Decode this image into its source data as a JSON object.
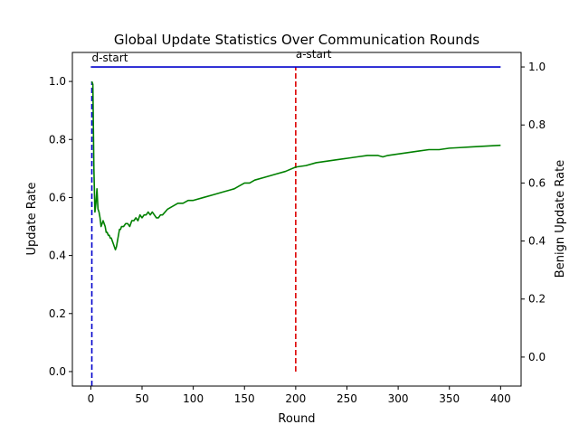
{
  "chart_data": {
    "type": "line",
    "title": "Global Update Statistics Over Communication Rounds",
    "xlabel": "Round",
    "ylabel_left": "Update Rate",
    "ylabel_right": "Benign Update Rate",
    "xlim": [
      -18,
      420
    ],
    "ylim_left": [
      -0.05,
      1.1
    ],
    "ylim_right": [
      -0.1,
      1.05
    ],
    "x_ticks": [
      0,
      50,
      100,
      150,
      200,
      250,
      300,
      350,
      400
    ],
    "y_ticks_left": [
      0.0,
      0.2,
      0.4,
      0.6,
      0.8,
      1.0
    ],
    "y_ticks_right": [
      0.0,
      0.2,
      0.4,
      0.6,
      0.8,
      1.0
    ],
    "colors": {
      "update_rate": "#008000",
      "benign_update_rate": "#0000cc",
      "d_start_line": "#0000cc",
      "a_start_line": "#dd0000",
      "left_axis_label": "#008000",
      "right_axis_label": "#0000cc"
    },
    "series": [
      {
        "axis": "left",
        "x": [
          1,
          2,
          3,
          4,
          5,
          6,
          7,
          8,
          9,
          10,
          11,
          12,
          13,
          14,
          15,
          16,
          17,
          18,
          19,
          20,
          21,
          22,
          23,
          24,
          25,
          26,
          27,
          28,
          29,
          30,
          32,
          34,
          36,
          38,
          40,
          42,
          44,
          46,
          48,
          50,
          52,
          54,
          56,
          58,
          60,
          62,
          64,
          66,
          68,
          70,
          75,
          80,
          85,
          90,
          95,
          100,
          110,
          120,
          130,
          140,
          145,
          150,
          155,
          160,
          170,
          180,
          190,
          200,
          210,
          220,
          230,
          240,
          250,
          260,
          270,
          280,
          285,
          290,
          300,
          310,
          320,
          330,
          340,
          350,
          360,
          370,
          380,
          390,
          400
        ],
        "values": [
          1.0,
          0.99,
          0.7,
          0.55,
          0.58,
          0.63,
          0.56,
          0.55,
          0.53,
          0.5,
          0.51,
          0.52,
          0.51,
          0.5,
          0.48,
          0.48,
          0.47,
          0.47,
          0.46,
          0.46,
          0.45,
          0.44,
          0.43,
          0.42,
          0.43,
          0.45,
          0.47,
          0.49,
          0.49,
          0.5,
          0.5,
          0.51,
          0.51,
          0.5,
          0.52,
          0.52,
          0.53,
          0.52,
          0.54,
          0.53,
          0.54,
          0.54,
          0.55,
          0.54,
          0.55,
          0.54,
          0.53,
          0.53,
          0.54,
          0.54,
          0.56,
          0.57,
          0.58,
          0.58,
          0.59,
          0.59,
          0.6,
          0.61,
          0.62,
          0.63,
          0.64,
          0.65,
          0.65,
          0.66,
          0.67,
          0.68,
          0.69,
          0.705,
          0.71,
          0.72,
          0.725,
          0.73,
          0.735,
          0.74,
          0.745,
          0.745,
          0.74,
          0.745,
          0.75,
          0.755,
          0.76,
          0.765,
          0.765,
          0.77,
          0.772,
          0.774,
          0.776,
          0.778,
          0.78
        ]
      },
      {
        "axis": "right",
        "x": [
          0,
          400
        ],
        "values": [
          1.0,
          1.0
        ]
      }
    ],
    "vlines": [
      {
        "x": 1,
        "label": "d-start",
        "style": "dashed",
        "y_range": [
          -0.05,
          1.0
        ]
      },
      {
        "x": 200,
        "label": "a-start",
        "style": "dashed",
        "y_range": [
          0.0,
          1.05
        ]
      }
    ]
  }
}
